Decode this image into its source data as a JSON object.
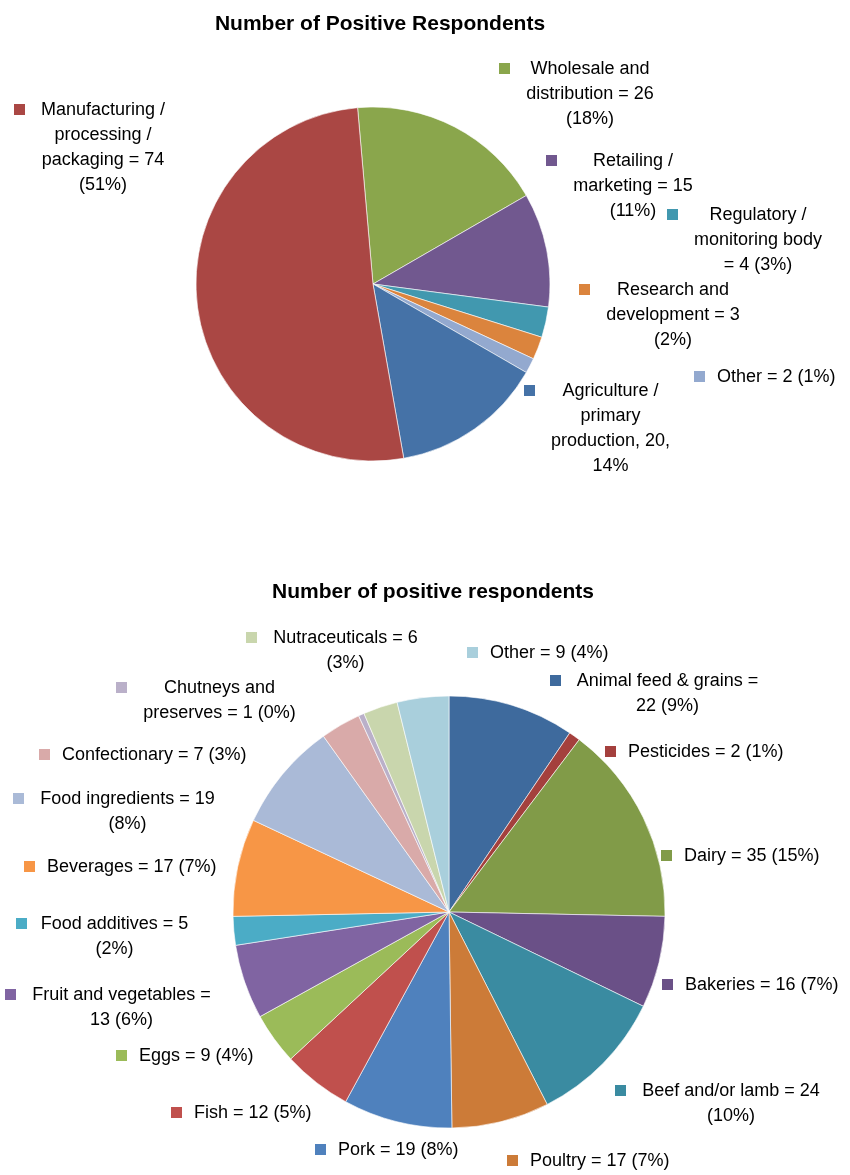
{
  "chart_data": [
    {
      "type": "pie",
      "title": "Number of Positive Respondents",
      "categories": [
        "Wholesale and distribution = 26 (18%)",
        "Retailing / marketing = 15 (11%)",
        "Regulatory / monitoring body = 4 (3%)",
        "Research and development = 3 (2%)",
        "Other = 2 (1%)",
        "Agriculture / primary production, 20, 14%",
        "Manufacturing / processing / packaging = 74 (51%)"
      ],
      "values": [
        26,
        15,
        4,
        3,
        2,
        20,
        74
      ],
      "colors": [
        "#8aa64c",
        "#71588f",
        "#4198af",
        "#db843d",
        "#93a9cf",
        "#4572a7",
        "#aa4744"
      ],
      "legend": "right"
    },
    {
      "type": "pie",
      "title": "Number of positive respondents",
      "categories": [
        "Animal feed & grains = 22 (9%)",
        "Pesticides = 2 (1%)",
        "Dairy = 35 (15%)",
        "Bakeries = 16 (7%)",
        "Beef and/or lamb = 24 (10%)",
        "Poultry = 17 (7%)",
        "Pork = 19 (8%)",
        "Fish = 12 (5%)",
        "Eggs = 9 (4%)",
        "Fruit and vegetables = 13 (6%)",
        "Food additives = 5 (2%)",
        "Beverages = 17 (7%)",
        "Food ingredients = 19 (8%)",
        "Confectionary = 7 (3%)",
        "Chutneys and preserves = 1 (0%)",
        "Nutraceuticals = 6 (3%)",
        "Other = 9 (4%)"
      ],
      "values": [
        22,
        2,
        35,
        16,
        24,
        17,
        19,
        12,
        9,
        13,
        5,
        17,
        19,
        7,
        1,
        6,
        9
      ],
      "colors": [
        "#3e6a9d",
        "#a4403d",
        "#819b48",
        "#6a5087",
        "#3a8ba1",
        "#cc7b38",
        "#4f81bd",
        "#c0504d",
        "#9bbb59",
        "#8064a2",
        "#4bacc6",
        "#f79646",
        "#aabad7",
        "#d9aaa9",
        "#bab0c9",
        "#c9d6ad",
        "#a9cfdc"
      ],
      "legend": "top left"
    }
  ]
}
